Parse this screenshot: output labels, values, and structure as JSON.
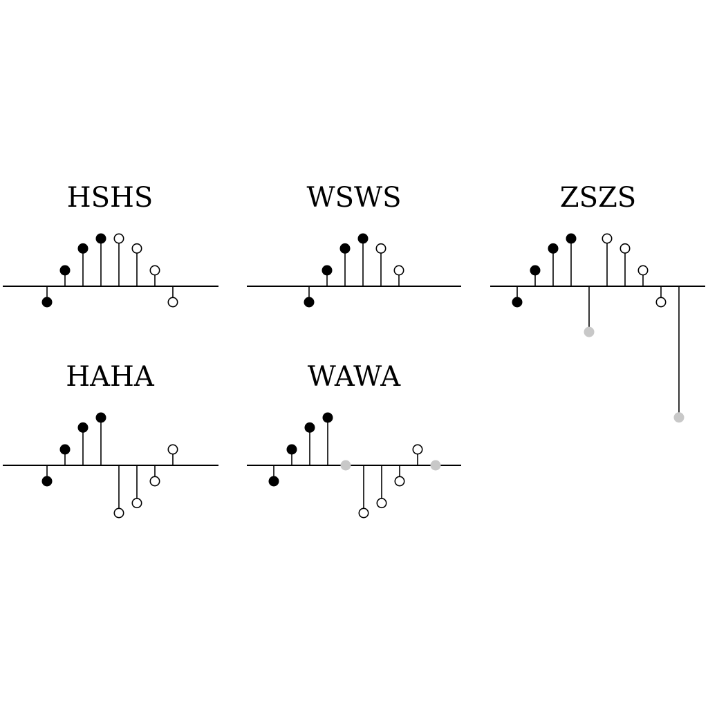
{
  "diagram": {
    "colors": {
      "filled": "#000000",
      "open": "#ffffff",
      "gray": "#c8c8c8",
      "line": "#000000"
    },
    "panels": [
      {
        "title": "HSHS",
        "samples": [
          {
            "value": -0.4,
            "marker": "filled"
          },
          {
            "value": 0.4,
            "marker": "filled"
          },
          {
            "value": 0.95,
            "marker": "filled"
          },
          {
            "value": 1.2,
            "marker": "filled"
          },
          {
            "value": 1.2,
            "marker": "open"
          },
          {
            "value": 0.95,
            "marker": "open"
          },
          {
            "value": 0.4,
            "marker": "open"
          },
          {
            "value": -0.4,
            "marker": "open"
          }
        ]
      },
      {
        "title": "WSWS",
        "samples": [
          {
            "value": -0.4,
            "marker": "filled"
          },
          {
            "value": 0.4,
            "marker": "filled"
          },
          {
            "value": 0.95,
            "marker": "filled"
          },
          {
            "value": 1.2,
            "marker": "filled"
          },
          {
            "value": 0.95,
            "marker": "open"
          },
          {
            "value": 0.4,
            "marker": "open"
          }
        ]
      },
      {
        "title": "ZSZS",
        "samples": [
          {
            "value": -0.4,
            "marker": "filled"
          },
          {
            "value": 0.4,
            "marker": "filled"
          },
          {
            "value": 0.95,
            "marker": "filled"
          },
          {
            "value": 1.2,
            "marker": "filled"
          },
          {
            "value": -1.15,
            "marker": "gray"
          },
          {
            "value": 1.2,
            "marker": "open"
          },
          {
            "value": 0.95,
            "marker": "open"
          },
          {
            "value": 0.4,
            "marker": "open"
          },
          {
            "value": -0.4,
            "marker": "open"
          },
          {
            "value": -3.3,
            "marker": "gray"
          }
        ]
      },
      {
        "title": "HAHA",
        "samples": [
          {
            "value": -0.4,
            "marker": "filled"
          },
          {
            "value": 0.4,
            "marker": "filled"
          },
          {
            "value": 0.95,
            "marker": "filled"
          },
          {
            "value": 1.2,
            "marker": "filled"
          },
          {
            "value": -1.2,
            "marker": "open"
          },
          {
            "value": -0.95,
            "marker": "open"
          },
          {
            "value": -0.4,
            "marker": "open"
          },
          {
            "value": 0.4,
            "marker": "open"
          }
        ]
      },
      {
        "title": "WAWA",
        "samples": [
          {
            "value": -0.4,
            "marker": "filled"
          },
          {
            "value": 0.4,
            "marker": "filled"
          },
          {
            "value": 0.95,
            "marker": "filled"
          },
          {
            "value": 1.2,
            "marker": "filled"
          },
          {
            "value": 0,
            "marker": "gray"
          },
          {
            "value": -1.2,
            "marker": "open"
          },
          {
            "value": -0.95,
            "marker": "open"
          },
          {
            "value": -0.4,
            "marker": "open"
          },
          {
            "value": 0.4,
            "marker": "open"
          },
          {
            "value": 0,
            "marker": "gray"
          }
        ]
      }
    ]
  }
}
